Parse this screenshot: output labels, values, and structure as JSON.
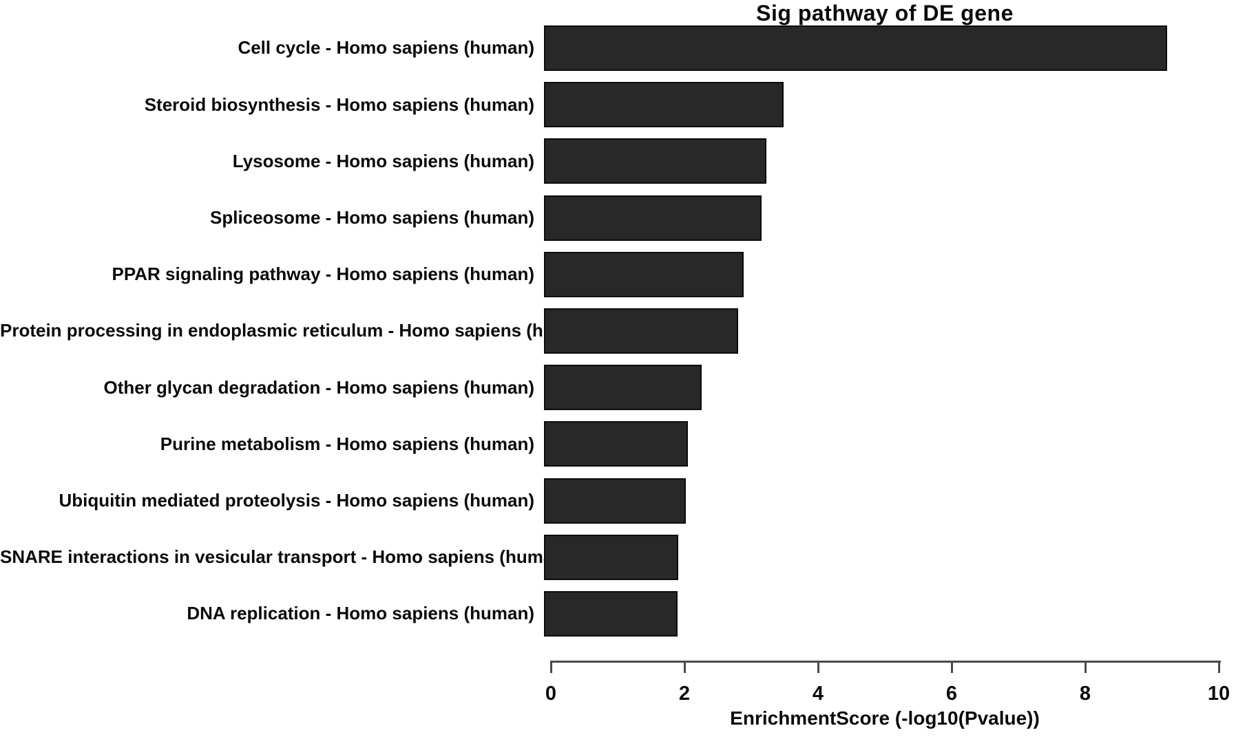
{
  "chart_data": {
    "type": "bar",
    "orientation": "horizontal",
    "title": "Sig pathway of DE gene",
    "categories": [
      "Cell cycle - Homo sapiens (human)",
      "Steroid biosynthesis - Homo sapiens (human)",
      "Lysosome - Homo sapiens (human)",
      "Spliceosome - Homo sapiens (human)",
      "PPAR signaling pathway - Homo sapiens (human)",
      "Protein processing in endoplasmic reticulum - Homo sapiens (human)",
      "Other glycan degradation - Homo sapiens (human)",
      "Purine metabolism - Homo sapiens (human)",
      "Ubiquitin mediated proteolysis - Homo sapiens (human)",
      "SNARE interactions in vesicular transport - Homo sapiens (human)",
      "DNA replication - Homo sapiens (human)"
    ],
    "values": [
      9.33,
      3.59,
      3.33,
      3.26,
      2.99,
      2.91,
      2.36,
      2.15,
      2.12,
      2.01,
      2.0
    ],
    "xlabel": "EnrichmentScore (-log10(Pvalue))",
    "ylabel": "",
    "xlim": [
      0,
      10
    ],
    "xticks": [
      "0",
      "2",
      "4",
      "6",
      "8",
      "10"
    ],
    "grid": false,
    "legend": "none",
    "bar_color": "#282828",
    "bar_border_color": "#0d0d0d",
    "axis_color": "#4a4a4a",
    "text_color": "#0a0a0a"
  }
}
